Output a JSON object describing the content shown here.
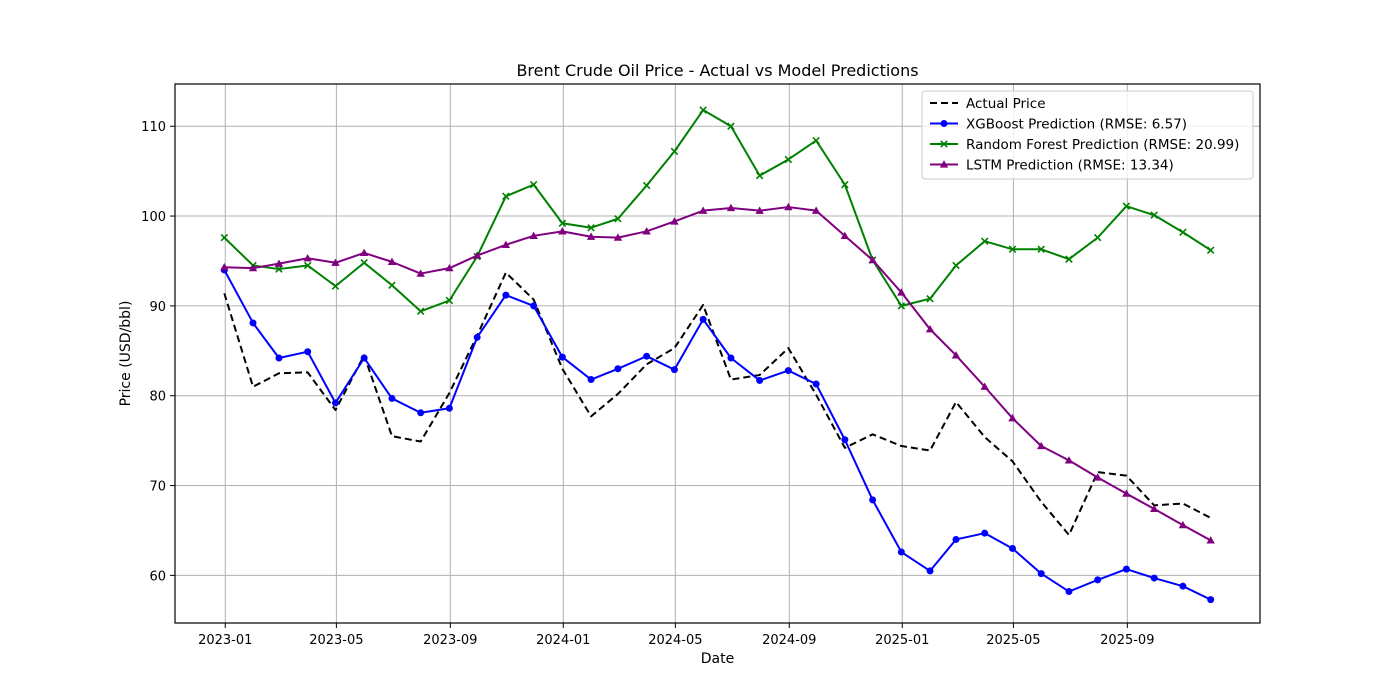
{
  "chart_data": {
    "type": "line",
    "title": "Brent Crude Oil Price - Actual vs Model Predictions",
    "xlabel": "Date",
    "ylabel": "Price (USD/bbl)",
    "x": [
      "2022-12",
      "2023-01",
      "2023-02",
      "2023-03",
      "2023-04",
      "2023-05",
      "2023-06",
      "2023-07",
      "2023-08",
      "2023-09",
      "2023-10",
      "2023-11",
      "2023-12",
      "2024-01",
      "2024-02",
      "2024-03",
      "2024-04",
      "2024-05",
      "2024-06",
      "2024-07",
      "2024-08",
      "2024-09",
      "2024-10",
      "2024-11",
      "2024-12",
      "2025-01",
      "2025-02",
      "2025-03",
      "2025-04",
      "2025-05",
      "2025-06",
      "2025-07",
      "2025-08",
      "2025-09",
      "2025-10",
      "2025-11"
    ],
    "x_ticks": [
      "2023-01",
      "2023-05",
      "2023-09",
      "2024-01",
      "2024-05",
      "2024-09",
      "2025-01",
      "2025-05",
      "2025-09"
    ],
    "y_ticks": [
      60,
      70,
      80,
      90,
      100,
      110
    ],
    "ylim": [
      54.7,
      114.7
    ],
    "grid": true,
    "legend_position": "top-right",
    "series": [
      {
        "name": "Actual Price",
        "color": "#000000",
        "style": "dashed",
        "marker": "none",
        "values": [
          91.4,
          81.0,
          82.5,
          82.6,
          78.4,
          84.5,
          75.5,
          74.9,
          80.3,
          86.7,
          93.7,
          90.7,
          83.0,
          77.7,
          80.2,
          83.5,
          85.3,
          90.1,
          81.8,
          82.3,
          85.3,
          80.1,
          74.2,
          75.7,
          74.4,
          73.9,
          79.3,
          75.4,
          72.7,
          68.2,
          64.5,
          71.5,
          71.1,
          67.8,
          68.0,
          66.4
        ]
      },
      {
        "name": "XGBoost Prediction (RMSE: 6.57)",
        "color": "#0000ff",
        "style": "solid",
        "marker": "circle",
        "values": [
          94.0,
          88.1,
          84.2,
          84.9,
          79.2,
          84.2,
          79.7,
          78.1,
          78.6,
          86.5,
          91.2,
          90.0,
          84.3,
          81.8,
          83.0,
          84.4,
          82.9,
          88.5,
          84.2,
          81.7,
          82.8,
          81.3,
          75.1,
          68.4,
          62.6,
          60.5,
          64.0,
          64.7,
          63.0,
          60.2,
          58.2,
          59.5,
          60.7,
          59.7,
          58.8,
          57.3
        ]
      },
      {
        "name": "Random Forest Prediction (RMSE: 20.99)",
        "color": "#008000",
        "style": "solid",
        "marker": "x",
        "values": [
          97.6,
          94.5,
          94.1,
          94.5,
          92.2,
          94.8,
          92.3,
          89.4,
          90.6,
          95.5,
          102.2,
          103.5,
          99.2,
          98.7,
          99.7,
          103.4,
          107.2,
          111.8,
          110.0,
          104.5,
          106.3,
          108.4,
          103.5,
          95.1,
          90.0,
          90.8,
          94.5,
          97.2,
          96.3,
          96.3,
          95.2,
          97.6,
          101.1,
          100.1,
          98.2,
          96.2
        ]
      },
      {
        "name": "LSTM Prediction (RMSE: 13.34)",
        "color": "#800080",
        "style": "solid",
        "marker": "triangle",
        "values": [
          94.3,
          94.2,
          94.7,
          95.3,
          94.8,
          95.9,
          94.9,
          93.6,
          94.2,
          95.6,
          96.8,
          97.8,
          98.3,
          97.7,
          97.6,
          98.3,
          99.4,
          100.6,
          100.9,
          100.6,
          101.0,
          100.6,
          97.8,
          95.1,
          91.5,
          87.4,
          84.5,
          81.0,
          77.5,
          74.4,
          72.8,
          70.9,
          69.1,
          67.4,
          65.6,
          63.9
        ]
      }
    ]
  }
}
